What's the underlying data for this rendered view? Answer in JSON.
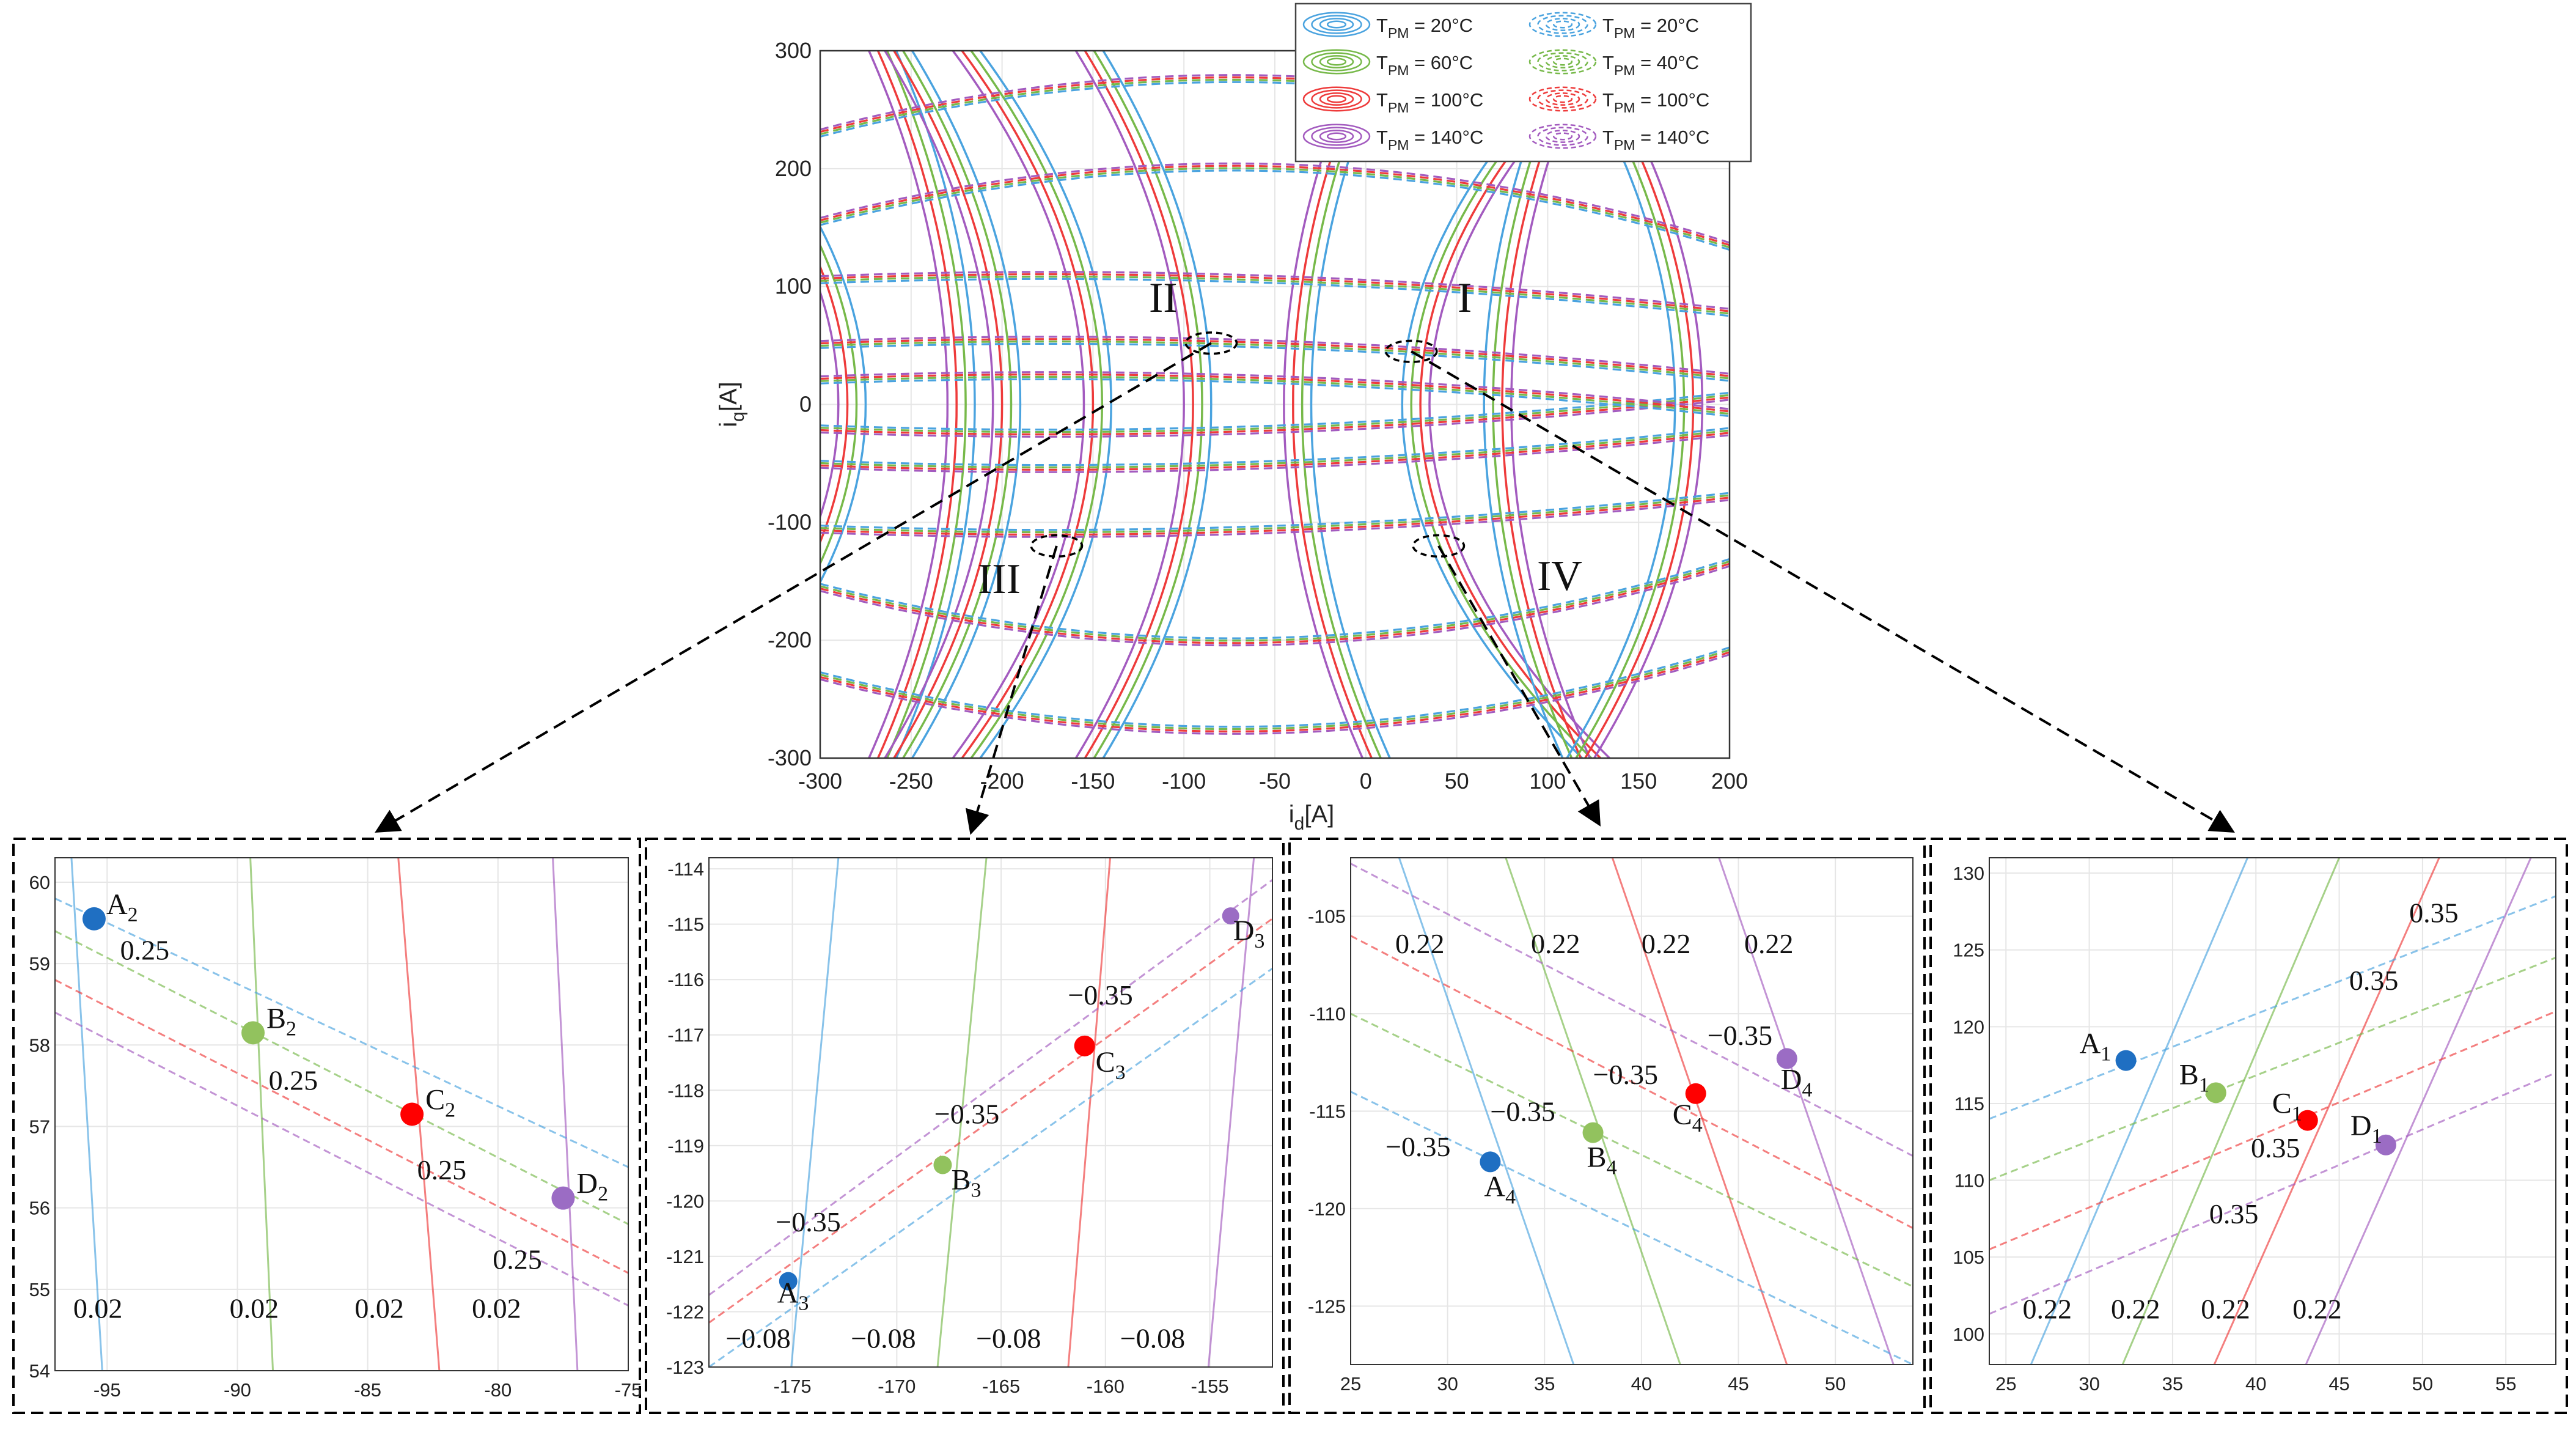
{
  "colors": {
    "blue": "#4aa3df",
    "green": "#77b94a",
    "red": "#ee3b3b",
    "purple": "#a35bbf",
    "pt_blue": "#1f6fc2",
    "pt_green": "#92c25e",
    "pt_red": "#ff0000",
    "pt_purple": "#9b6cc4",
    "grid": "#e6e6e6",
    "axis": "#333333",
    "ellipse": "#000000"
  },
  "chart_data": [
    {
      "id": "main",
      "type": "line",
      "title": "",
      "xlabel": "i_d[A]",
      "ylabel": "i_q[A]",
      "xlim": [
        -300,
        200
      ],
      "ylim": [
        -300,
        300
      ],
      "xticks": [
        "-300",
        "-250",
        "-200",
        "-150",
        "-100",
        "-50",
        "0",
        "50",
        "100",
        "150",
        "200"
      ],
      "yticks": [
        "300",
        "200",
        "100",
        "0",
        "-100",
        "-200",
        "-300"
      ],
      "series": [
        {
          "name": "T_PM = 20°C (solid)",
          "color": "blue",
          "dash": false,
          "temperature": 20
        },
        {
          "name": "T_PM = 60°C (solid)",
          "color": "green",
          "dash": false,
          "temperature": 60
        },
        {
          "name": "T_PM = 100°C (solid)",
          "color": "red",
          "dash": false,
          "temperature": 100
        },
        {
          "name": "T_PM = 140°C (solid)",
          "color": "purple",
          "dash": false,
          "temperature": 140
        },
        {
          "name": "T_PM = 20°C (dashed)",
          "color": "blue",
          "dash": true,
          "temperature": 20
        },
        {
          "name": "T_PM = 40°C (dashed)",
          "color": "green",
          "dash": true,
          "temperature": 40
        },
        {
          "name": "T_PM = 100°C (dashed)",
          "color": "red",
          "dash": true,
          "temperature": 100
        },
        {
          "name": "T_PM = 140°C (dashed)",
          "color": "purple",
          "dash": true,
          "temperature": 140
        }
      ],
      "legend": [
        {
          "base": "T",
          "sub": "PM",
          "value": " = 20°C",
          "color": "blue",
          "dash": false
        },
        {
          "base": "T",
          "sub": "PM",
          "value": " = 20°C",
          "color": "blue",
          "dash": true
        },
        {
          "base": "T",
          "sub": "PM",
          "value": " = 60°C",
          "color": "green",
          "dash": false
        },
        {
          "base": "T",
          "sub": "PM",
          "value": " = 40°C",
          "color": "green",
          "dash": true
        },
        {
          "base": "T",
          "sub": "PM",
          "value": " = 100°C",
          "color": "red",
          "dash": false
        },
        {
          "base": "T",
          "sub": "PM",
          "value": " = 100°C",
          "color": "red",
          "dash": true
        },
        {
          "base": "T",
          "sub": "PM",
          "value": " = 140°C",
          "color": "purple",
          "dash": false
        },
        {
          "base": "T",
          "sub": "PM",
          "value": " = 140°C",
          "color": "purple",
          "dash": true
        }
      ],
      "legend_position": "top-right",
      "grid": true,
      "regions": [
        {
          "label": "I",
          "center": [
            25,
            45
          ],
          "radii": [
            14,
            9
          ]
        },
        {
          "label": "II",
          "center": [
            -85,
            52
          ],
          "radii": [
            14,
            9
          ]
        },
        {
          "label": "III",
          "center": [
            -170,
            -120
          ],
          "radii": [
            14,
            9
          ]
        },
        {
          "label": "IV",
          "center": [
            40,
            -120
          ],
          "radii": [
            14,
            9
          ]
        }
      ],
      "solid_families": {
        "vertical_centers_at_iq0": [
          -275,
          -215,
          -190,
          -140,
          -85,
          -30,
          20,
          65,
          170
        ],
        "temperature_offsets": [
          0,
          5,
          10,
          15
        ]
      },
      "dashed_families": {
        "levels_iq_at_id0": [
          -270,
          -195,
          -100,
          -45,
          -15,
          15,
          45,
          100,
          195,
          270
        ],
        "temperature_offsets": [
          0,
          2,
          4,
          6
        ]
      }
    },
    {
      "id": "zoom1",
      "type": "line",
      "xlim": [
        -97,
        -75
      ],
      "ylim": [
        54,
        60.3
      ],
      "xticks": [
        -95,
        -90,
        -85,
        -80,
        -75
      ],
      "yticks": [
        54,
        55,
        56,
        57,
        58,
        59,
        60
      ],
      "solid_lines": [
        {
          "color": "blue",
          "p1": [
            -96.5,
            61
          ],
          "p2": [
            -95,
            53
          ]
        },
        {
          "color": "green",
          "p1": [
            -89.6,
            61
          ],
          "p2": [
            -88.5,
            53
          ]
        },
        {
          "color": "red",
          "p1": [
            -84,
            61
          ],
          "p2": [
            -82,
            53
          ]
        },
        {
          "color": "purple",
          "p1": [
            -78,
            61
          ],
          "p2": [
            -76.8,
            53
          ]
        }
      ],
      "dashed_lines": [
        {
          "color": "blue",
          "p1": [
            -97,
            59.8
          ],
          "p2": [
            -75,
            56.5
          ]
        },
        {
          "color": "green",
          "p1": [
            -97,
            59.4
          ],
          "p2": [
            -75,
            55.8
          ]
        },
        {
          "color": "red",
          "p1": [
            -97,
            58.8
          ],
          "p2": [
            -75,
            55.2
          ]
        },
        {
          "color": "purple",
          "p1": [
            -97,
            58.4
          ],
          "p2": [
            -75,
            54.8
          ]
        }
      ],
      "points": [
        {
          "name": "A",
          "sub": "2",
          "x": -95.5,
          "y": 59.55,
          "color": "pt_blue",
          "r": 19,
          "dx": 20,
          "dy": -8
        },
        {
          "name": "B",
          "sub": "2",
          "x": -89.4,
          "y": 58.15,
          "color": "pt_green",
          "r": 19,
          "dx": 22,
          "dy": -8
        },
        {
          "name": "C",
          "sub": "2",
          "x": -83.3,
          "y": 57.15,
          "color": "pt_red",
          "r": 19,
          "dx": 22,
          "dy": -8
        },
        {
          "name": "D",
          "sub": "2",
          "x": -77.5,
          "y": 56.12,
          "color": "pt_purple",
          "r": 19,
          "dx": 22,
          "dy": -8
        }
      ],
      "annotations": [
        {
          "text": "0.25",
          "x": -94.5,
          "y": 59.05
        },
        {
          "text": "0.25",
          "x": -88.8,
          "y": 57.45
        },
        {
          "text": "0.25",
          "x": -83.1,
          "y": 56.35
        },
        {
          "text": "0.25",
          "x": -80.2,
          "y": 55.25
        },
        {
          "text": "0.02",
          "x": -96.3,
          "y": 54.65
        },
        {
          "text": "0.02",
          "x": -90.3,
          "y": 54.65
        },
        {
          "text": "0.02",
          "x": -85.5,
          "y": 54.65
        },
        {
          "text": "0.02",
          "x": -81.0,
          "y": 54.65
        }
      ]
    },
    {
      "id": "zoom2",
      "type": "line",
      "xlim": [
        -179,
        -152
      ],
      "ylim": [
        -123,
        -113.8
      ],
      "xticks": [
        -175,
        -170,
        -165,
        -160,
        -155
      ],
      "yticks": [
        -114,
        -115,
        -116,
        -117,
        -118,
        -119,
        -120,
        -121,
        -122,
        -123
      ],
      "solid_lines": [
        {
          "color": "blue",
          "p1": [
            -175.3,
            -124
          ],
          "p2": [
            -172.6,
            -113
          ]
        },
        {
          "color": "green",
          "p1": [
            -168.3,
            -124
          ],
          "p2": [
            -165.5,
            -113
          ]
        },
        {
          "color": "red",
          "p1": [
            -162,
            -124
          ],
          "p2": [
            -159.6,
            -113
          ]
        },
        {
          "color": "purple",
          "p1": [
            -155.3,
            -124
          ],
          "p2": [
            -152.7,
            -113
          ]
        }
      ],
      "dashed_lines": [
        {
          "color": "blue",
          "p1": [
            -179,
            -123.0
          ],
          "p2": [
            -152,
            -115.8
          ]
        },
        {
          "color": "red",
          "p1": [
            -179,
            -122.2
          ],
          "p2": [
            -152,
            -114.9
          ]
        },
        {
          "color": "purple",
          "p1": [
            -179,
            -121.7
          ],
          "p2": [
            -152,
            -114.2
          ]
        }
      ],
      "points": [
        {
          "name": "A",
          "sub": "3",
          "x": -175.2,
          "y": -121.45,
          "color": "pt_blue",
          "r": 15,
          "dx": -18,
          "dy": 35
        },
        {
          "name": "B",
          "sub": "3",
          "x": -167.8,
          "y": -119.35,
          "color": "pt_green",
          "r": 15,
          "dx": 14,
          "dy": 40
        },
        {
          "name": "C",
          "sub": "3",
          "x": -161,
          "y": -117.2,
          "color": "pt_red",
          "r": 17,
          "dx": 18,
          "dy": 42
        },
        {
          "name": "D",
          "sub": "3",
          "x": -154,
          "y": -114.85,
          "color": "pt_purple",
          "r": 14,
          "dx": 4,
          "dy": 40
        }
      ],
      "annotations": [
        {
          "text": "−0.35",
          "x": -175.8,
          "y": -120.55
        },
        {
          "text": "−0.35",
          "x": -168.2,
          "y": -118.6
        },
        {
          "text": "−0.35",
          "x": -161.8,
          "y": -116.45
        },
        {
          "text": "−0.08",
          "x": -178.2,
          "y": -122.65
        },
        {
          "text": "−0.08",
          "x": -172.2,
          "y": -122.65
        },
        {
          "text": "−0.08",
          "x": -166.2,
          "y": -122.65
        },
        {
          "text": "−0.08",
          "x": -159.3,
          "y": -122.65
        }
      ]
    },
    {
      "id": "zoom3",
      "type": "line",
      "xlim": [
        25,
        54
      ],
      "ylim": [
        -128,
        -102
      ],
      "xticks": [
        25,
        30,
        35,
        40,
        45,
        50
      ],
      "yticks": [
        -105,
        -110,
        -115,
        -120,
        -125
      ],
      "solid_lines": [
        {
          "color": "blue",
          "p1": [
            27.5,
            -102
          ],
          "p2": [
            36.5,
            -128
          ]
        },
        {
          "color": "green",
          "p1": [
            33,
            -102
          ],
          "p2": [
            42,
            -128
          ]
        },
        {
          "color": "red",
          "p1": [
            38.5,
            -102
          ],
          "p2": [
            47.5,
            -128
          ]
        },
        {
          "color": "purple",
          "p1": [
            44,
            -102
          ],
          "p2": [
            53,
            -128
          ]
        }
      ],
      "dashed_lines": [
        {
          "color": "purple",
          "p1": [
            25,
            -102.3
          ],
          "p2": [
            54,
            -117.3
          ]
        },
        {
          "color": "red",
          "p1": [
            25,
            -106
          ],
          "p2": [
            54,
            -121
          ]
        },
        {
          "color": "green",
          "p1": [
            25,
            -110
          ],
          "p2": [
            54,
            -124
          ]
        },
        {
          "color": "blue",
          "p1": [
            25,
            -114
          ],
          "p2": [
            54,
            -128
          ]
        }
      ],
      "points": [
        {
          "name": "A",
          "sub": "4",
          "x": 32.2,
          "y": -117.6,
          "color": "pt_blue",
          "r": 17,
          "dx": -10,
          "dy": 56
        },
        {
          "name": "B",
          "sub": "4",
          "x": 37.5,
          "y": -116.1,
          "color": "pt_green",
          "r": 17,
          "dx": -10,
          "dy": 56
        },
        {
          "name": "C",
          "sub": "4",
          "x": 42.8,
          "y": -114.1,
          "color": "pt_red",
          "r": 17,
          "dx": -38,
          "dy": 50
        },
        {
          "name": "D",
          "sub": "4",
          "x": 47.5,
          "y": -112.3,
          "color": "pt_purple",
          "r": 17,
          "dx": -10,
          "dy": 50
        }
      ],
      "annotations": [
        {
          "text": "0.22",
          "x": 27.3,
          "y": -106.9
        },
        {
          "text": "0.22",
          "x": 34.3,
          "y": -106.9
        },
        {
          "text": "0.22",
          "x": 40.0,
          "y": -106.9
        },
        {
          "text": "0.22",
          "x": 45.3,
          "y": -106.9
        },
        {
          "text": "−0.35",
          "x": 26.8,
          "y": -117.3
        },
        {
          "text": "−0.35",
          "x": 32.2,
          "y": -115.5
        },
        {
          "text": "−0.35",
          "x": 37.5,
          "y": -113.6
        },
        {
          "text": "−0.35",
          "x": 43.4,
          "y": -111.6
        }
      ]
    },
    {
      "id": "zoom4",
      "type": "line",
      "xlim": [
        24,
        58
      ],
      "ylim": [
        98,
        131
      ],
      "xticks": [
        25,
        30,
        35,
        40,
        45,
        50,
        55
      ],
      "yticks": [
        100,
        105,
        110,
        115,
        120,
        125,
        130
      ],
      "solid_lines": [
        {
          "color": "blue",
          "p1": [
            26.5,
            98
          ],
          "p2": [
            39.5,
            131
          ]
        },
        {
          "color": "green",
          "p1": [
            32,
            98
          ],
          "p2": [
            45,
            131
          ]
        },
        {
          "color": "red",
          "p1": [
            37.5,
            98
          ],
          "p2": [
            51,
            131
          ]
        },
        {
          "color": "purple",
          "p1": [
            43,
            98
          ],
          "p2": [
            56.5,
            131
          ]
        }
      ],
      "dashed_lines": [
        {
          "color": "blue",
          "p1": [
            24,
            114
          ],
          "p2": [
            58,
            128.5
          ]
        },
        {
          "color": "green",
          "p1": [
            24,
            110
          ],
          "p2": [
            58,
            124.5
          ]
        },
        {
          "color": "red",
          "p1": [
            24,
            105.5
          ],
          "p2": [
            58,
            121
          ]
        },
        {
          "color": "purple",
          "p1": [
            24,
            101.3
          ],
          "p2": [
            58,
            117
          ]
        }
      ],
      "points": [
        {
          "name": "A",
          "sub": "1",
          "x": 32.2,
          "y": 117.8,
          "color": "pt_blue",
          "r": 17,
          "dx": -76,
          "dy": -12
        },
        {
          "name": "B",
          "sub": "1",
          "x": 37.6,
          "y": 115.7,
          "color": "pt_green",
          "r": 17,
          "dx": -60,
          "dy": -14
        },
        {
          "name": "C",
          "sub": "1",
          "x": 43.1,
          "y": 113.9,
          "color": "pt_red",
          "r": 17,
          "dx": -58,
          "dy": -12
        },
        {
          "name": "D",
          "sub": "1",
          "x": 47.8,
          "y": 112.3,
          "color": "pt_purple",
          "r": 17,
          "dx": -58,
          "dy": -16
        }
      ],
      "annotations": [
        {
          "text": "0.35",
          "x": 49.2,
          "y": 126.8
        },
        {
          "text": "0.35",
          "x": 45.6,
          "y": 122.4
        },
        {
          "text": "0.35",
          "x": 39.7,
          "y": 111.5
        },
        {
          "text": "0.35",
          "x": 37.2,
          "y": 107.2
        },
        {
          "text": "0.22",
          "x": 26.0,
          "y": 101.0
        },
        {
          "text": "0.22",
          "x": 31.3,
          "y": 101.0
        },
        {
          "text": "0.22",
          "x": 36.7,
          "y": 101.0
        },
        {
          "text": "0.22",
          "x": 42.2,
          "y": 101.0
        }
      ]
    }
  ]
}
